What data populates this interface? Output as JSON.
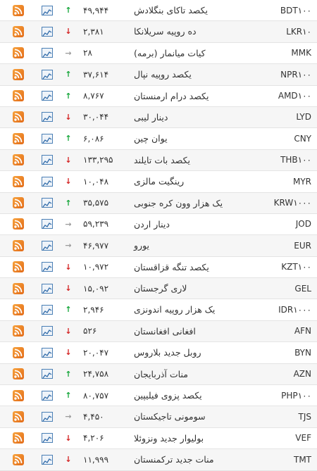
{
  "colors": {
    "up": "#13a538",
    "down": "#d32020",
    "flat": "#9a9a9a",
    "rss": "#f08a24",
    "chart": "#4a7fb5"
  },
  "icons": {
    "rss": "rss-icon",
    "chart": "chart-icon",
    "up": "arrow-up-icon",
    "down": "arrow-down-icon",
    "flat": "arrow-right-icon"
  },
  "rows": [
    {
      "code": "BDT١٠٠",
      "name": "یکصد تاکای بنگلادش",
      "price": "۴۹,۹۴۴",
      "trend": "up"
    },
    {
      "code": "LKR١٠",
      "name": "ده روپیه سریلانکا",
      "price": "۲,۳۸۱",
      "trend": "down"
    },
    {
      "code": "MMK",
      "name": "کیات میانمار (برمه)",
      "price": "۲۸",
      "trend": "flat"
    },
    {
      "code": "NPR١٠٠",
      "name": "یکصد روپیه نپال",
      "price": "۳۷,۶۱۴",
      "trend": "up"
    },
    {
      "code": "AMD١٠٠",
      "name": "یکصد درام ارمنستان",
      "price": "۸,۷۶۷",
      "trend": "up"
    },
    {
      "code": "LYD",
      "name": "دینار لیبی",
      "price": "۳۰,۰۴۴",
      "trend": "down"
    },
    {
      "code": "CNY",
      "name": "یوان چین",
      "price": "۶,۰۸۶",
      "trend": "up"
    },
    {
      "code": "THB١٠٠",
      "name": "یکصد بات تایلند",
      "price": "۱۳۳,۲۹۵",
      "trend": "down"
    },
    {
      "code": "MYR",
      "name": "رینگیت مالزی",
      "price": "۱۰,۰۴۸",
      "trend": "down"
    },
    {
      "code": "KRW١٠٠٠",
      "name": "یک هزار وون کره جنوبی",
      "price": "۳۵,۵۷۵",
      "trend": "up"
    },
    {
      "code": "JOD",
      "name": "دینار اردن",
      "price": "۵۹,۲۳۹",
      "trend": "flat"
    },
    {
      "code": "EUR",
      "name": "یورو",
      "price": "۴۶,۹۷۷",
      "trend": "flat"
    },
    {
      "code": "KZT١٠٠",
      "name": "یکصد تنگه قزاقستان",
      "price": "۱۰,۹۷۲",
      "trend": "down"
    },
    {
      "code": "GEL",
      "name": "لاری گرجستان",
      "price": "۱۵,۰۹۲",
      "trend": "down"
    },
    {
      "code": "IDR١٠٠٠",
      "name": "یک هزار روپیه اندونزی",
      "price": "۲,۹۴۶",
      "trend": "up"
    },
    {
      "code": "AFN",
      "name": "افغانی افغانستان",
      "price": "۵۲۶",
      "trend": "down"
    },
    {
      "code": "BYN",
      "name": "روبل جدید بلاروس",
      "price": "۲۰,۰۴۷",
      "trend": "down"
    },
    {
      "code": "AZN",
      "name": "منات آذربایجان",
      "price": "۲۴,۷۵۸",
      "trend": "up"
    },
    {
      "code": "PHP١٠٠",
      "name": "یکصد پزوی فیلیپین",
      "price": "۸۰,۷۵۷",
      "trend": "up"
    },
    {
      "code": "TJS",
      "name": "سومونی تاجیکستان",
      "price": "۴,۴۵۰",
      "trend": "flat"
    },
    {
      "code": "VEF",
      "name": "بولیوار جدید ونزوئلا",
      "price": "۴,۲۰۶",
      "trend": "down"
    },
    {
      "code": "TMT",
      "name": "منات جدید ترکمنستان",
      "price": "۱۱,۹۹۹",
      "trend": "down"
    }
  ]
}
